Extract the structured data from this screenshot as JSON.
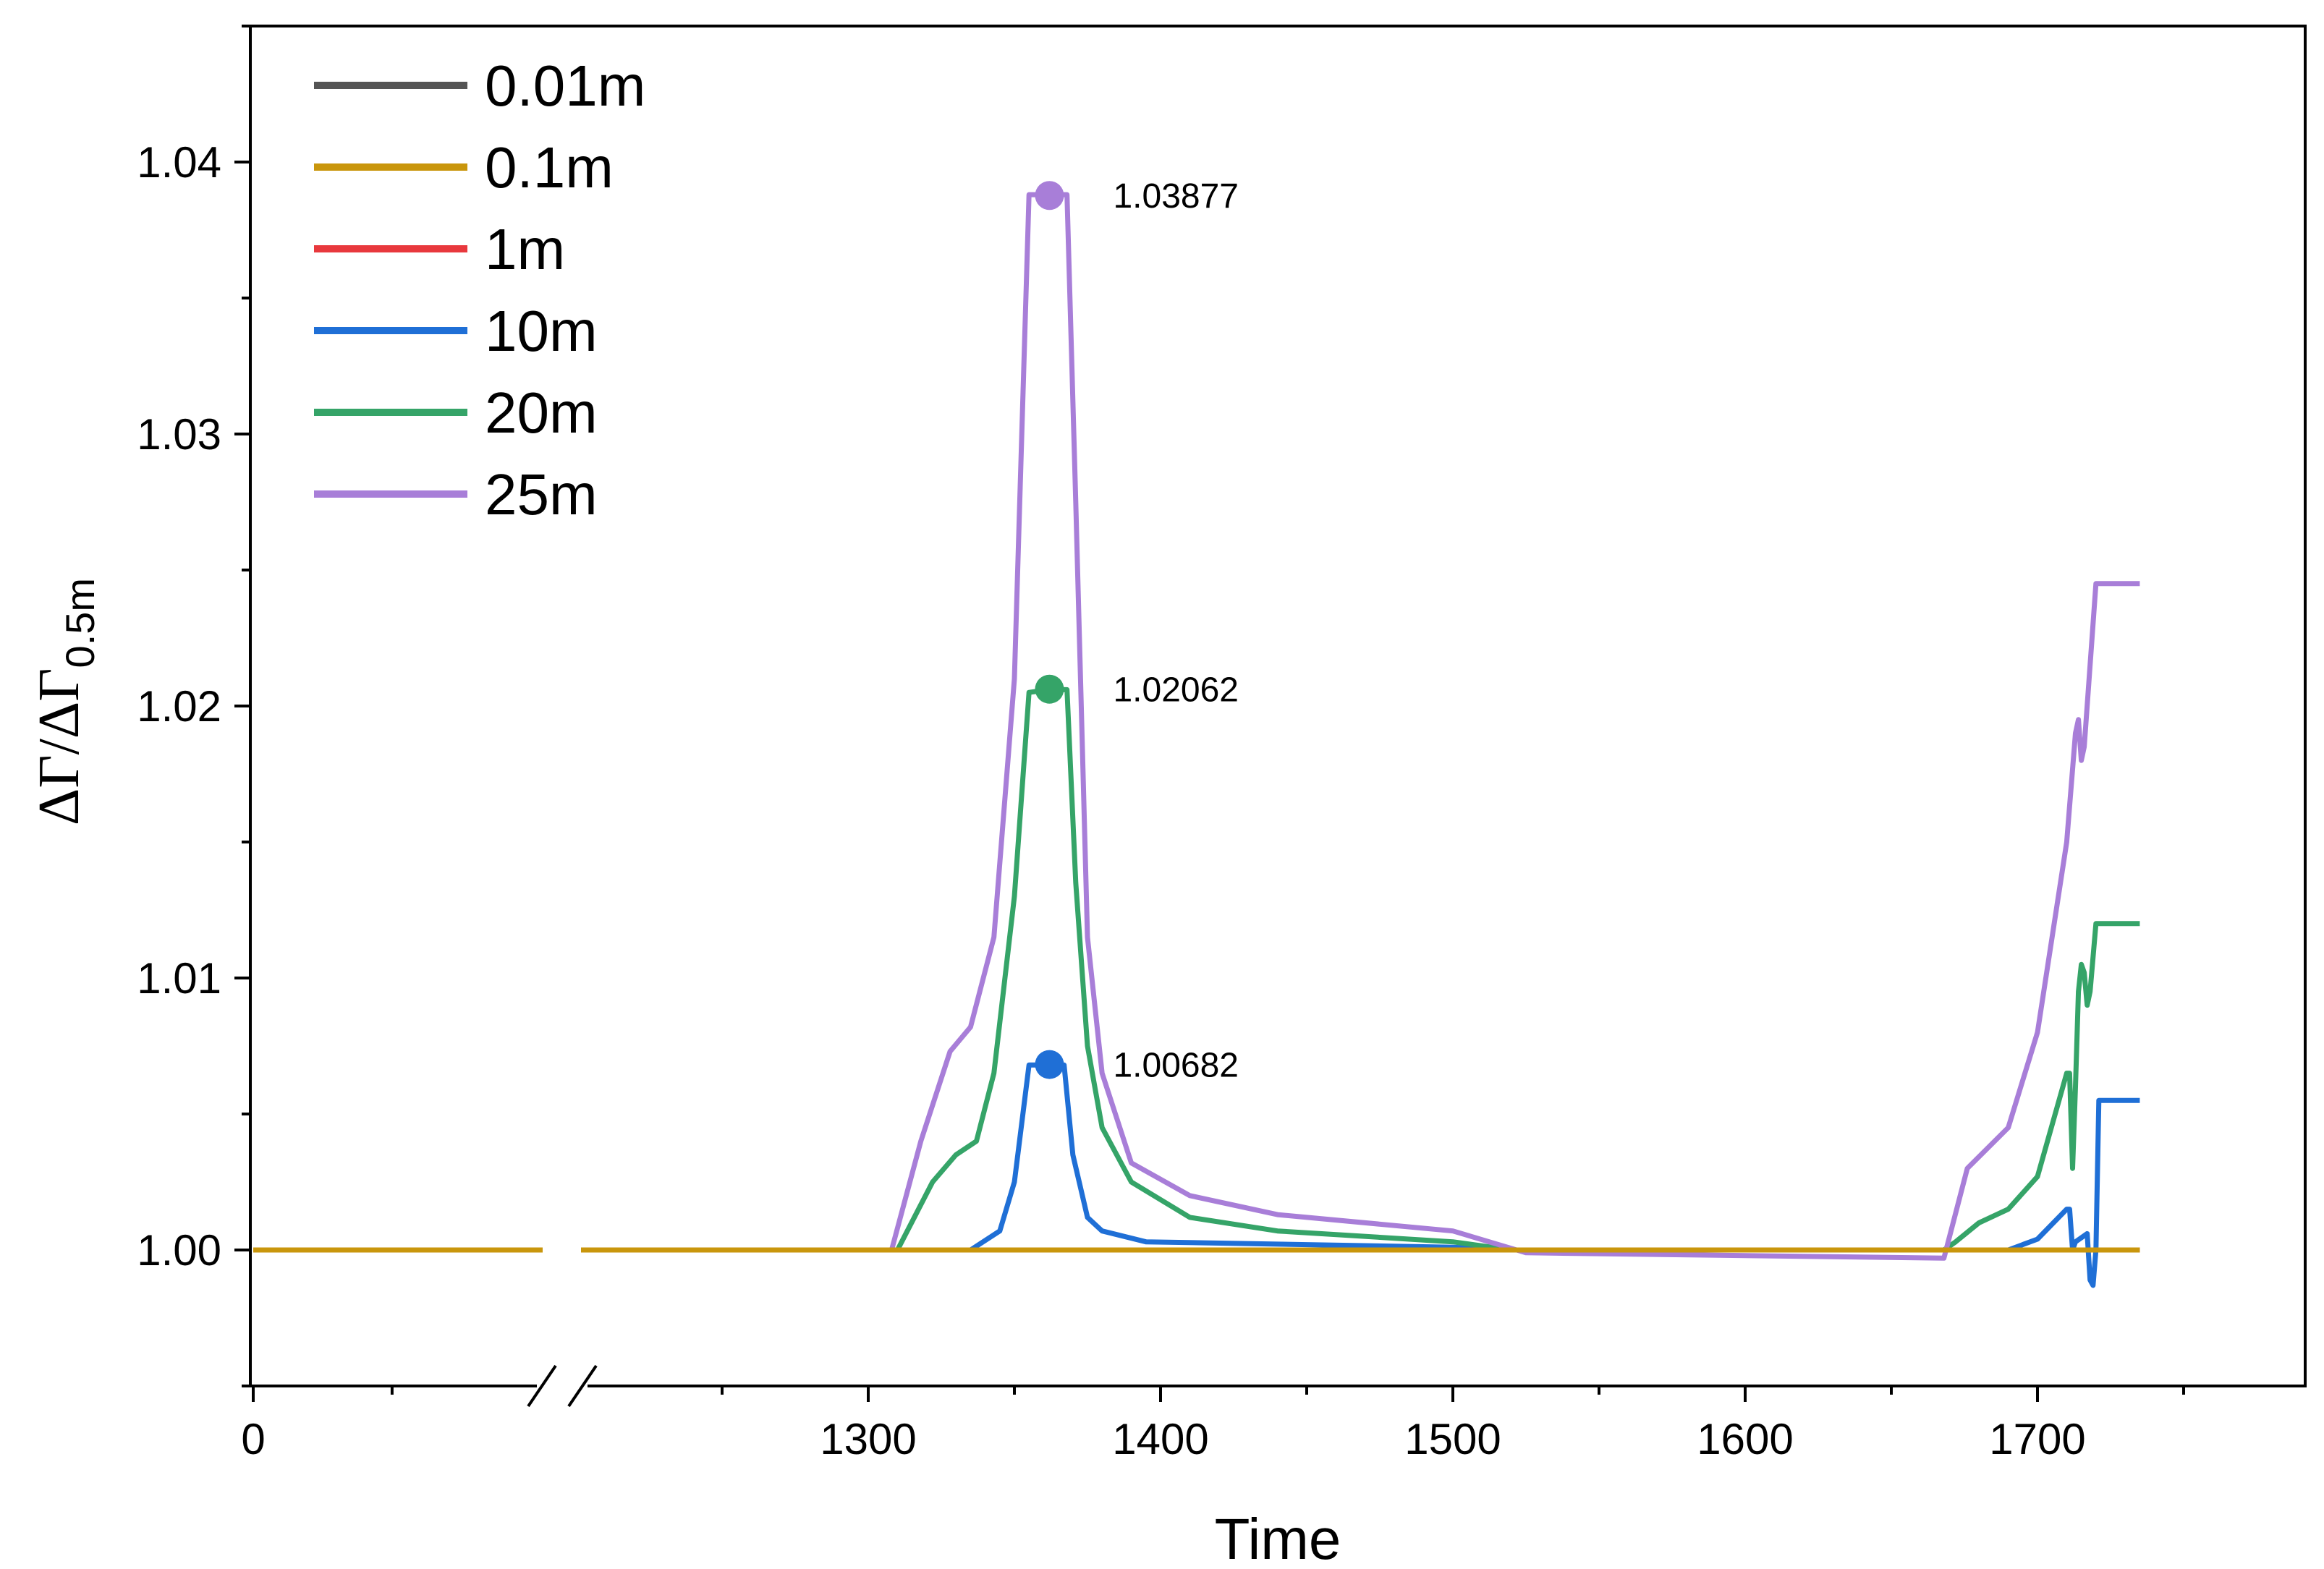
{
  "chart_data": {
    "type": "line",
    "title": "",
    "xlabel": "Time",
    "ylabel_main": "ΔΓ/ΔΓ",
    "ylabel_sub": "0.5m",
    "axis_break": true,
    "xlim_left": [
      0,
      95
    ],
    "xlim_right": [
      1190,
      1790
    ],
    "ylim": [
      0.995,
      1.045
    ],
    "xticks": [
      0,
      1300,
      1400,
      1500,
      1600,
      1700
    ],
    "xtick_labels": [
      "0",
      "1300",
      "1400",
      "1500",
      "1600",
      "1700"
    ],
    "yticks": [
      1.0,
      1.01,
      1.02,
      1.03,
      1.04
    ],
    "ytick_labels": [
      "1.00",
      "1.01",
      "1.02",
      "1.03",
      "1.04"
    ],
    "grid": false,
    "legend_position": "top-left",
    "series": [
      {
        "name": "0.01m",
        "color": "#555555",
        "points": [
          [
            0,
            1.0
          ],
          [
            1735,
            1.0
          ]
        ]
      },
      {
        "name": "0.1m",
        "color": "#C9960C",
        "points": [
          [
            0,
            1.0
          ],
          [
            1735,
            1.0
          ]
        ]
      },
      {
        "name": "1m",
        "color": "#E8383D",
        "points": [
          [
            0,
            1.0
          ],
          [
            1735,
            1.0
          ]
        ]
      },
      {
        "name": "10m",
        "color": "#1F6FD6",
        "points": [
          [
            0,
            1.0
          ],
          [
            1335,
            1.0
          ],
          [
            1345,
            1.0007
          ],
          [
            1350,
            1.0025
          ],
          [
            1355,
            1.0068
          ],
          [
            1362,
            1.0068
          ],
          [
            1367,
            1.0068
          ],
          [
            1370,
            1.0035
          ],
          [
            1375,
            1.0012
          ],
          [
            1380,
            1.0007
          ],
          [
            1395,
            1.0003
          ],
          [
            1500,
            1.0001
          ],
          [
            1520,
            1.0
          ],
          [
            1690,
            1.0
          ],
          [
            1700,
            1.0004
          ],
          [
            1710,
            1.0015
          ],
          [
            1711,
            1.0015
          ],
          [
            1712,
            1.0
          ],
          [
            1713,
            1.0003
          ],
          [
            1717,
            1.0006
          ],
          [
            1718,
            0.9989
          ],
          [
            1719,
            0.9987
          ],
          [
            1720,
            1.0
          ],
          [
            1721,
            1.0055
          ],
          [
            1735,
            1.0055
          ]
        ]
      },
      {
        "name": "20m",
        "color": "#35A468",
        "points": [
          [
            0,
            1.0
          ],
          [
            1310,
            1.0
          ],
          [
            1322,
            1.0025
          ],
          [
            1330,
            1.0035
          ],
          [
            1337,
            1.004
          ],
          [
            1343,
            1.0065
          ],
          [
            1350,
            1.013
          ],
          [
            1355,
            1.0205
          ],
          [
            1362,
            1.0206
          ],
          [
            1368,
            1.0206
          ],
          [
            1371,
            1.0135
          ],
          [
            1375,
            1.0075
          ],
          [
            1380,
            1.0045
          ],
          [
            1390,
            1.0025
          ],
          [
            1410,
            1.0012
          ],
          [
            1440,
            1.0007
          ],
          [
            1500,
            1.0003
          ],
          [
            1520,
            1.0
          ],
          [
            1668,
            1.0
          ],
          [
            1672,
            1.0003
          ],
          [
            1680,
            1.001
          ],
          [
            1690,
            1.0015
          ],
          [
            1700,
            1.0027
          ],
          [
            1710,
            1.0065
          ],
          [
            1711,
            1.0065
          ],
          [
            1712,
            1.003
          ],
          [
            1713,
            1.006
          ],
          [
            1714,
            1.0095
          ],
          [
            1715,
            1.0105
          ],
          [
            1716,
            1.0102
          ],
          [
            1717,
            1.009
          ],
          [
            1718,
            1.0095
          ],
          [
            1720,
            1.012
          ],
          [
            1735,
            1.012
          ]
        ]
      },
      {
        "name": "25m",
        "color": "#A87ED8",
        "points": [
          [
            0,
            1.0
          ],
          [
            1308,
            1.0
          ],
          [
            1318,
            1.004
          ],
          [
            1328,
            1.0073
          ],
          [
            1335,
            1.0082
          ],
          [
            1343,
            1.0115
          ],
          [
            1350,
            1.021
          ],
          [
            1355,
            1.0388
          ],
          [
            1362,
            1.0388
          ],
          [
            1368,
            1.0388
          ],
          [
            1371,
            1.0275
          ],
          [
            1375,
            1.0115
          ],
          [
            1380,
            1.0065
          ],
          [
            1390,
            1.0032
          ],
          [
            1410,
            1.002
          ],
          [
            1440,
            1.0013
          ],
          [
            1500,
            1.0007
          ],
          [
            1525,
            0.9999
          ],
          [
            1668,
            0.9997
          ],
          [
            1676,
            1.003
          ],
          [
            1690,
            1.0045
          ],
          [
            1700,
            1.008
          ],
          [
            1710,
            1.015
          ],
          [
            1713,
            1.019
          ],
          [
            1714,
            1.0195
          ],
          [
            1715,
            1.018
          ],
          [
            1716,
            1.0185
          ],
          [
            1718,
            1.0215
          ],
          [
            1720,
            1.0245
          ],
          [
            1735,
            1.0245
          ]
        ]
      }
    ],
    "annotations": [
      {
        "text": "1.03877",
        "x": 1362,
        "y": 1.03877,
        "color": "#A87ED8"
      },
      {
        "text": "1.02062",
        "x": 1362,
        "y": 1.02062,
        "color": "#35A468"
      },
      {
        "text": "1.00682",
        "x": 1362,
        "y": 1.00682,
        "color": "#1F6FD6"
      }
    ]
  }
}
